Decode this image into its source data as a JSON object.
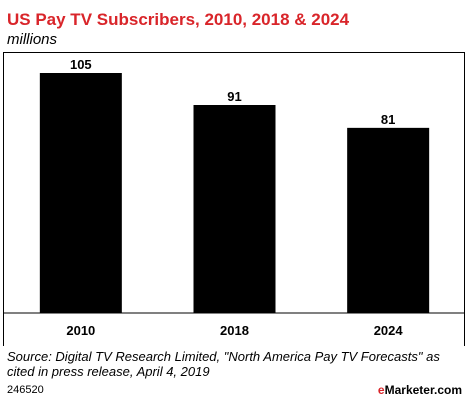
{
  "chart_data": {
    "type": "bar",
    "title": "US Pay TV Subscribers, 2010, 2018 & 2024",
    "subtitle": "millions",
    "categories": [
      "2010",
      "2018",
      "2024"
    ],
    "values": [
      105,
      91,
      81
    ],
    "ylim": [
      0,
      130
    ],
    "grid": false,
    "bar_color": "#000000"
  },
  "source": "Source: Digital TV Research Limited, \"North America Pay TV Forecasts\" as cited in press release, April 4, 2019",
  "footer": {
    "chart_id": "246520",
    "brand_prefix": "e",
    "brand_suffix": "Marketer",
    "brand_domain": ".com",
    "brand_color": "#d9252a"
  }
}
